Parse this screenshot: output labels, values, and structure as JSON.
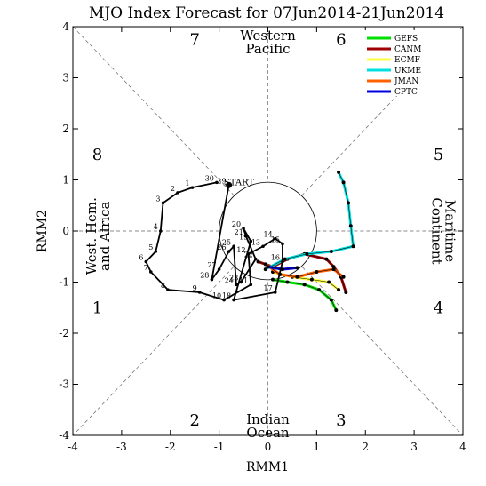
{
  "chart_data": {
    "type": "line",
    "title": "MJO Index Forecast for 07Jun2014-21Jun2014",
    "xlabel": "RMM1",
    "ylabel": "RMM2",
    "xlim": [
      -4,
      4
    ],
    "ylim": [
      -4,
      4
    ],
    "x_ticks": [
      "-4",
      "-3",
      "-2",
      "-1",
      "0",
      "1",
      "2",
      "3",
      "4"
    ],
    "y_ticks": [
      "-4",
      "-3",
      "-2",
      "-1",
      "0",
      "1",
      "2",
      "3",
      "4"
    ],
    "unit_circle_radius": 1,
    "start_label": "START",
    "phase_numbers": [
      {
        "label": "1",
        "x": -3.5,
        "y": -1.5
      },
      {
        "label": "2",
        "x": -1.5,
        "y": -3.7
      },
      {
        "label": "3",
        "x": 1.5,
        "y": -3.7
      },
      {
        "label": "4",
        "x": 3.5,
        "y": -1.5
      },
      {
        "label": "5",
        "x": 3.5,
        "y": 1.5
      },
      {
        "label": "6",
        "x": 1.5,
        "y": 3.75
      },
      {
        "label": "7",
        "x": -1.5,
        "y": 3.75
      },
      {
        "label": "8",
        "x": -3.5,
        "y": 1.5
      }
    ],
    "regions": {
      "top": [
        "Western",
        "Pacific"
      ],
      "bottom": [
        "Indian",
        "Ocean"
      ],
      "left": [
        "West. Hem.",
        "and Africa"
      ],
      "right": [
        "Maritime",
        "Continent"
      ]
    },
    "legend": [
      {
        "name": "GEFS",
        "color": "#00e000"
      },
      {
        "name": "CANM",
        "color": "#a00000"
      },
      {
        "name": "ECMF",
        "color": "#ffff40"
      },
      {
        "name": "UKME",
        "color": "#00e0e0"
      },
      {
        "name": "JMAN",
        "color": "#ff6000"
      },
      {
        "name": "CPTC",
        "color": "#0000e0"
      }
    ],
    "observed": {
      "name": "observed",
      "color": "#000000",
      "points": [
        {
          "label": "30",
          "x": -1.05,
          "y": 0.95
        },
        {
          "label": "1",
          "x": -1.55,
          "y": 0.85
        },
        {
          "label": "2",
          "x": -1.85,
          "y": 0.75
        },
        {
          "label": "3",
          "x": -2.15,
          "y": 0.55
        },
        {
          "label": "4",
          "x": -2.2,
          "y": 0.0
        },
        {
          "label": "5",
          "x": -2.3,
          "y": -0.4
        },
        {
          "label": "6",
          "x": -2.5,
          "y": -0.6
        },
        {
          "label": "7",
          "x": -2.4,
          "y": -0.8
        },
        {
          "label": "8",
          "x": -2.05,
          "y": -1.15
        },
        {
          "label": "9",
          "x": -1.4,
          "y": -1.2
        },
        {
          "label": "10",
          "x": -0.9,
          "y": -1.35
        },
        {
          "label": "11",
          "x": -0.35,
          "y": -1.05
        },
        {
          "label": "12",
          "x": -0.4,
          "y": -0.45
        },
        {
          "label": "13",
          "x": -0.1,
          "y": -0.3
        },
        {
          "label": "14",
          "x": 0.15,
          "y": -0.15
        },
        {
          "label": "15",
          "x": 0.3,
          "y": -0.25
        },
        {
          "label": "16",
          "x": 0.3,
          "y": -0.6
        },
        {
          "label": "17",
          "x": 0.15,
          "y": -1.2
        },
        {
          "label": "18",
          "x": -0.7,
          "y": -1.35
        },
        {
          "label": "19",
          "x": -0.35,
          "y": -0.2
        },
        {
          "label": "20",
          "x": -0.5,
          "y": 0.05
        },
        {
          "label": "21",
          "x": -0.45,
          "y": -0.1
        },
        {
          "label": "22",
          "x": -0.25,
          "y": -0.55
        },
        {
          "label": "23",
          "x": -0.55,
          "y": -1.0
        },
        {
          "label": "24",
          "x": -0.65,
          "y": -1.05
        },
        {
          "label": "25",
          "x": -0.7,
          "y": -0.3
        },
        {
          "label": "26",
          "x": -0.8,
          "y": -0.4
        },
        {
          "label": "27",
          "x": -1.0,
          "y": -0.75
        },
        {
          "label": "28",
          "x": -1.15,
          "y": -0.95
        },
        {
          "label": "29",
          "x": -0.8,
          "y": 0.9
        }
      ]
    },
    "series": [
      {
        "name": "GEFS",
        "color": "#00e000",
        "points": [
          [
            0.1,
            -0.95
          ],
          [
            0.4,
            -1.0
          ],
          [
            0.75,
            -1.05
          ],
          [
            1.05,
            -1.15
          ],
          [
            1.3,
            -1.35
          ],
          [
            1.4,
            -1.55
          ]
        ]
      },
      {
        "name": "CANM",
        "color": "#a00000",
        "points": [
          [
            -0.2,
            -0.6
          ],
          [
            0.1,
            -0.7
          ],
          [
            0.4,
            -0.55
          ],
          [
            0.75,
            -0.45
          ],
          [
            1.2,
            -0.55
          ],
          [
            1.35,
            -0.7
          ],
          [
            1.5,
            -0.9
          ],
          [
            1.6,
            -1.2
          ]
        ]
      },
      {
        "name": "ECMF",
        "color": "#ffff40",
        "points": [
          [
            0.1,
            -0.8
          ],
          [
            0.5,
            -0.9
          ],
          [
            0.9,
            -0.95
          ],
          [
            1.25,
            -1.0
          ],
          [
            1.45,
            -1.15
          ]
        ]
      },
      {
        "name": "UKME",
        "color": "#00e0e0",
        "points": [
          [
            -0.05,
            -0.75
          ],
          [
            0.35,
            -0.55
          ],
          [
            0.8,
            -0.45
          ],
          [
            1.3,
            -0.4
          ],
          [
            1.75,
            -0.3
          ],
          [
            1.7,
            0.1
          ],
          [
            1.65,
            0.55
          ],
          [
            1.55,
            0.95
          ],
          [
            1.45,
            1.15
          ]
        ]
      },
      {
        "name": "JMAN",
        "color": "#ff6000",
        "points": [
          [
            -0.05,
            -0.65
          ],
          [
            0.25,
            -0.85
          ],
          [
            0.6,
            -0.9
          ],
          [
            1.0,
            -0.8
          ],
          [
            1.35,
            -0.75
          ],
          [
            1.55,
            -0.9
          ]
        ]
      },
      {
        "name": "CPTC",
        "color": "#0000e0",
        "points": [
          [
            0.0,
            -0.7
          ],
          [
            0.3,
            -0.75
          ],
          [
            0.6,
            -0.72
          ]
        ]
      }
    ]
  }
}
